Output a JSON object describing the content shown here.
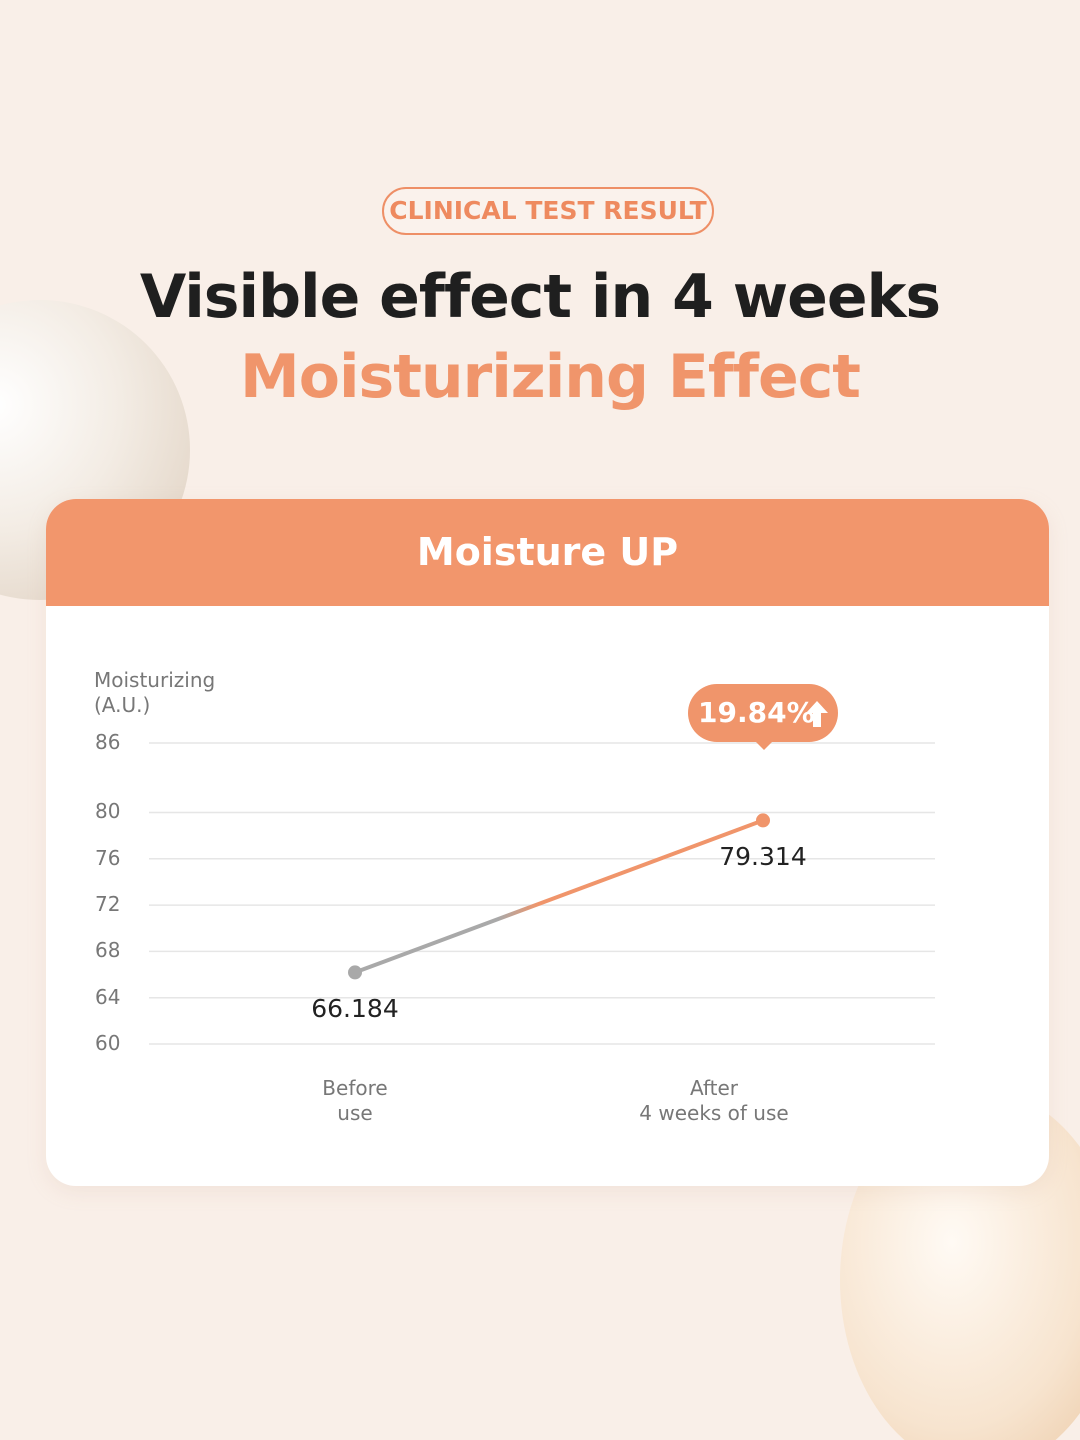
{
  "badge": "CLINICAL TEST RESULT",
  "chart_data": {
    "type": "line",
    "title": "Visible effect in 4 weeks",
    "subtitle": "Moisturizing Effect",
    "header": "Moisture UP",
    "ylabel": "Moisturizing\n(A.U.)",
    "categories": [
      "Before\nuse",
      "After\n4 weeks of use"
    ],
    "series": [
      {
        "color": "#f0956b",
        "values": [
          66.184,
          79.314
        ]
      }
    ],
    "annotation": "19.84%",
    "ylim": [
      60,
      86
    ],
    "yticks": [
      60,
      64,
      68,
      72,
      76,
      80,
      86
    ],
    "grid": true
  }
}
